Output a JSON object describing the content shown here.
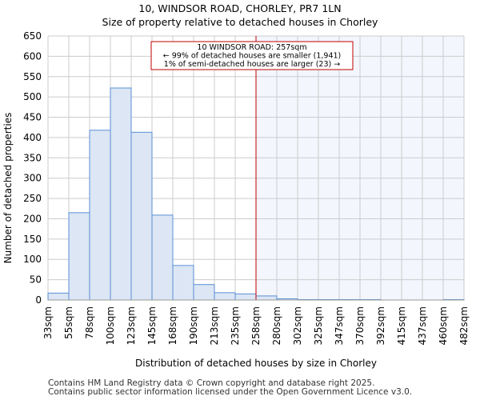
{
  "chart_data": {
    "type": "bar",
    "title": "10, WINDSOR ROAD, CHORLEY, PR7 1LN",
    "subtitle": "Size of property relative to detached houses in Chorley",
    "xlabel": "Distribution of detached houses by size in Chorley",
    "ylabel": "Number of detached properties",
    "ylim": [
      0,
      650
    ],
    "yticks": [
      0,
      50,
      100,
      150,
      200,
      250,
      300,
      350,
      400,
      450,
      500,
      550,
      600,
      650
    ],
    "xtick_labels": [
      "33sqm",
      "55sqm",
      "78sqm",
      "100sqm",
      "123sqm",
      "145sqm",
      "168sqm",
      "190sqm",
      "213sqm",
      "235sqm",
      "258sqm",
      "280sqm",
      "302sqm",
      "325sqm",
      "347sqm",
      "370sqm",
      "392sqm",
      "415sqm",
      "437sqm",
      "460sqm",
      "482sqm"
    ],
    "values": [
      17,
      215,
      418,
      522,
      413,
      209,
      85,
      38,
      18,
      15,
      10,
      3,
      1,
      1,
      1,
      1,
      0,
      0,
      0,
      1
    ],
    "marker_bin_position": 10,
    "annotation": [
      "10 WINDSOR ROAD: 257sqm",
      "← 99% of detached houses are smaller (1,941)",
      "1% of semi-detached houses are larger (23) →"
    ],
    "grid": true,
    "colors": {
      "bar_fill": "#dce6f4",
      "bar_edge": "#5a8fd6",
      "marker": "#c00000",
      "highlight": "#f3f6fd"
    }
  },
  "footer": [
    "Contains HM Land Registry data © Crown copyright and database right 2025.",
    "Contains public sector information licensed under the Open Government Licence v3.0."
  ]
}
